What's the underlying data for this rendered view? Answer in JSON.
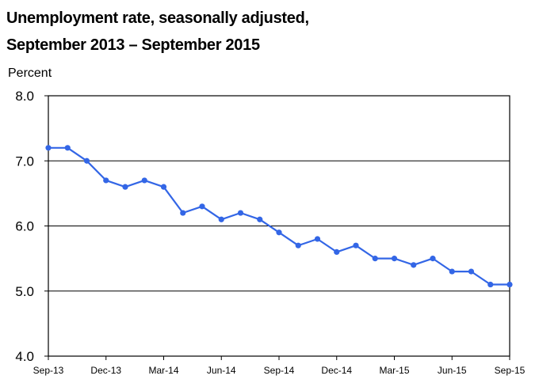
{
  "chart_data": {
    "type": "line",
    "title": "Unemployment rate, seasonally adjusted,",
    "subtitle": "September 2013 – September 2015",
    "ylabel": "Percent",
    "ylim": [
      4.0,
      8.0
    ],
    "yticks": [
      "8.0",
      "7.0",
      "6.0",
      "5.0",
      "4.0"
    ],
    "x_tick_labels": [
      "Sep-13",
      "Dec-13",
      "Mar-14",
      "Jun-14",
      "Sep-14",
      "Dec-14",
      "Mar-15",
      "Jun-15",
      "Sep-15"
    ],
    "x": [
      "Sep-13",
      "Oct-13",
      "Nov-13",
      "Dec-13",
      "Jan-14",
      "Feb-14",
      "Mar-14",
      "Apr-14",
      "May-14",
      "Jun-14",
      "Jul-14",
      "Aug-14",
      "Sep-14",
      "Oct-14",
      "Nov-14",
      "Dec-14",
      "Jan-15",
      "Feb-15",
      "Mar-15",
      "Apr-15",
      "May-15",
      "Jun-15",
      "Jul-15",
      "Aug-15",
      "Sep-15"
    ],
    "series": [
      {
        "values": [
          7.2,
          7.2,
          7.0,
          6.7,
          6.6,
          6.7,
          6.6,
          6.2,
          6.3,
          6.1,
          6.2,
          6.1,
          5.9,
          5.7,
          5.8,
          5.6,
          5.7,
          5.5,
          5.5,
          5.4,
          5.5,
          5.3,
          5.3,
          5.1,
          5.1
        ],
        "color": "#3366e6"
      }
    ],
    "gridlines": [
      7.0,
      6.0,
      5.0
    ],
    "grid": true
  }
}
